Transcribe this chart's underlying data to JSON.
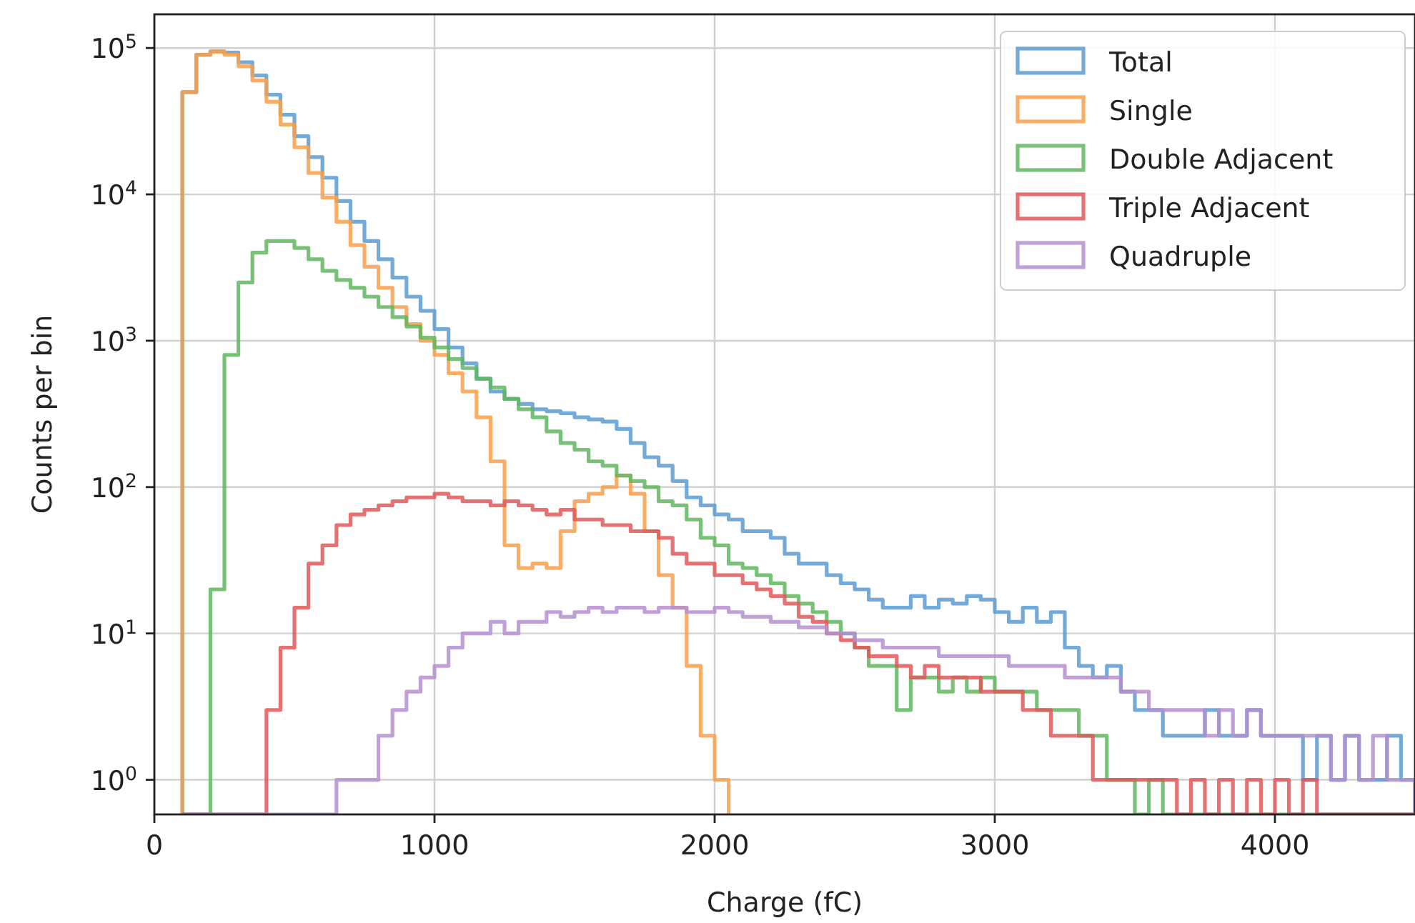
{
  "chart_data": {
    "type": "histogram",
    "xlabel": "Charge (fC)",
    "ylabel": "Counts per bin",
    "log": "y",
    "grid": true,
    "legend": "top right",
    "xlim": [
      0,
      4500
    ],
    "xticks": [
      0,
      1000,
      2000,
      3000,
      4000
    ],
    "ylim": [
      0.58,
      170000
    ],
    "yticks": [
      {
        "value": 1,
        "label": "10$^{0}$"
      },
      {
        "value": 10,
        "label": "10$^{1}$"
      },
      {
        "value": 100,
        "label": "10$^{2}$"
      },
      {
        "value": 1000,
        "label": "10$^{3}$"
      },
      {
        "value": 10000,
        "label": "10$^{4}$"
      },
      {
        "value": 100000,
        "label": "10$^{5}$"
      }
    ],
    "bins": [
      100,
      150,
      200,
      250,
      300,
      350,
      400,
      450,
      500,
      550,
      600,
      650,
      700,
      750,
      800,
      850,
      900,
      950,
      1000,
      1050,
      1100,
      1150,
      1200,
      1250,
      1300,
      1350,
      1400,
      1450,
      1500,
      1550,
      1600,
      1650,
      1700,
      1750,
      1800,
      1850,
      1900,
      1950,
      2000,
      2050,
      2100,
      2150,
      2200,
      2250,
      2300,
      2350,
      2400,
      2450,
      2500,
      2550,
      2600,
      2650,
      2700,
      2750,
      2800,
      2850,
      2900,
      2950,
      3000,
      3050,
      3100,
      3150,
      3200,
      3250,
      3300,
      3350,
      3400,
      3450,
      3500,
      3550,
      3600,
      3650,
      3700,
      3750,
      3800,
      3850,
      3900,
      3950,
      4000,
      4050,
      4100,
      4150,
      4200,
      4250,
      4300,
      4350,
      4400,
      4450,
      4500
    ],
    "series": [
      {
        "name": "Total",
        "color": "#5b9bd0",
        "values": [
          50000,
          90000,
          95000,
          93000,
          80000,
          65000,
          48000,
          35000,
          25000,
          18000,
          13000,
          9000,
          6500,
          4800,
          3600,
          2700,
          2000,
          1600,
          1200,
          900,
          700,
          550,
          450,
          400,
          370,
          340,
          330,
          320,
          300,
          290,
          280,
          250,
          200,
          160,
          140,
          110,
          85,
          75,
          65,
          60,
          50,
          50,
          45,
          35,
          30,
          30,
          25,
          22,
          20,
          17,
          15,
          15,
          18,
          15,
          17,
          16,
          18,
          17,
          14,
          12,
          15,
          12,
          14,
          8,
          6,
          5,
          6,
          4,
          3,
          3,
          2,
          2,
          2,
          3,
          2,
          2,
          3,
          2,
          2,
          2,
          1,
          2,
          1,
          2,
          1,
          1,
          2,
          1
        ]
      },
      {
        "name": "Single",
        "color": "#f9a04a",
        "bins": [
          100,
          150,
          200,
          250,
          300,
          350,
          400,
          450,
          500,
          550,
          600,
          650,
          700,
          750,
          800,
          850,
          900,
          950,
          1000,
          1050,
          1100,
          1150,
          1200,
          1250,
          1300,
          1350,
          1400,
          1450,
          1500,
          1550,
          1600,
          1650,
          1700,
          1750,
          1800,
          1850,
          1900,
          1950,
          2000,
          2050
        ],
        "values": [
          50000,
          90000,
          94000,
          90000,
          75000,
          60000,
          43000,
          30000,
          21000,
          14000,
          9500,
          6500,
          4500,
          3200,
          2300,
          1700,
          1300,
          1000,
          800,
          600,
          450,
          300,
          150,
          40,
          28,
          30,
          28,
          50,
          80,
          90,
          100,
          120,
          90,
          50,
          25,
          15,
          6,
          2,
          1
        ]
      },
      {
        "name": "Double Adjacent",
        "color": "#5fb75f",
        "values": [
          null,
          null,
          20,
          800,
          2500,
          4000,
          4800,
          4800,
          4300,
          3600,
          3000,
          2600,
          2300,
          2000,
          1700,
          1450,
          1250,
          1050,
          900,
          750,
          650,
          550,
          480,
          400,
          340,
          300,
          240,
          200,
          180,
          150,
          140,
          120,
          110,
          100,
          80,
          75,
          60,
          45,
          40,
          30,
          28,
          25,
          22,
          18,
          16,
          14,
          12,
          10,
          8,
          6,
          6,
          3,
          5,
          5,
          4,
          5,
          4,
          5,
          4,
          4,
          4,
          3,
          3,
          3,
          2,
          2,
          1,
          1,
          null,
          1,
          null,
          null,
          null,
          null,
          null,
          null,
          null,
          null,
          null,
          null,
          null,
          null,
          null,
          null,
          null,
          null,
          null,
          null
        ]
      },
      {
        "name": "Triple Adjacent",
        "color": "#e0585a",
        "values": [
          null,
          null,
          null,
          null,
          null,
          null,
          3,
          8,
          15,
          30,
          40,
          55,
          65,
          70,
          75,
          80,
          85,
          85,
          90,
          85,
          80,
          80,
          75,
          80,
          75,
          70,
          65,
          70,
          60,
          60,
          55,
          55,
          50,
          50,
          45,
          35,
          30,
          30,
          25,
          25,
          22,
          20,
          18,
          16,
          13,
          12,
          10,
          9,
          8,
          7,
          7,
          6,
          5,
          6,
          5,
          5,
          5,
          4,
          4,
          4,
          3,
          3,
          2,
          2,
          2,
          1,
          1,
          1,
          1,
          1,
          1,
          null,
          1,
          null,
          1,
          null,
          1,
          null,
          1,
          null,
          1,
          null,
          null,
          null,
          null,
          null,
          null,
          null
        ]
      },
      {
        "name": "Quadruple",
        "color": "#b48fd0",
        "values": [
          null,
          null,
          null,
          null,
          null,
          null,
          null,
          null,
          null,
          null,
          null,
          1,
          1,
          1,
          2,
          3,
          4,
          5,
          6,
          8,
          10,
          10,
          12,
          10,
          12,
          12,
          14,
          13,
          14,
          15,
          14,
          15,
          15,
          14,
          15,
          15,
          14,
          14,
          15,
          14,
          13,
          13,
          12,
          12,
          11,
          11,
          10,
          10,
          9,
          9,
          8,
          8,
          8,
          8,
          7,
          7,
          7,
          7,
          7,
          6,
          6,
          6,
          6,
          5,
          5,
          5,
          5,
          4,
          4,
          3,
          3,
          3,
          3,
          2,
          3,
          2,
          3,
          2,
          2,
          2,
          2,
          2,
          1,
          2,
          1,
          2,
          1,
          1
        ]
      }
    ]
  }
}
